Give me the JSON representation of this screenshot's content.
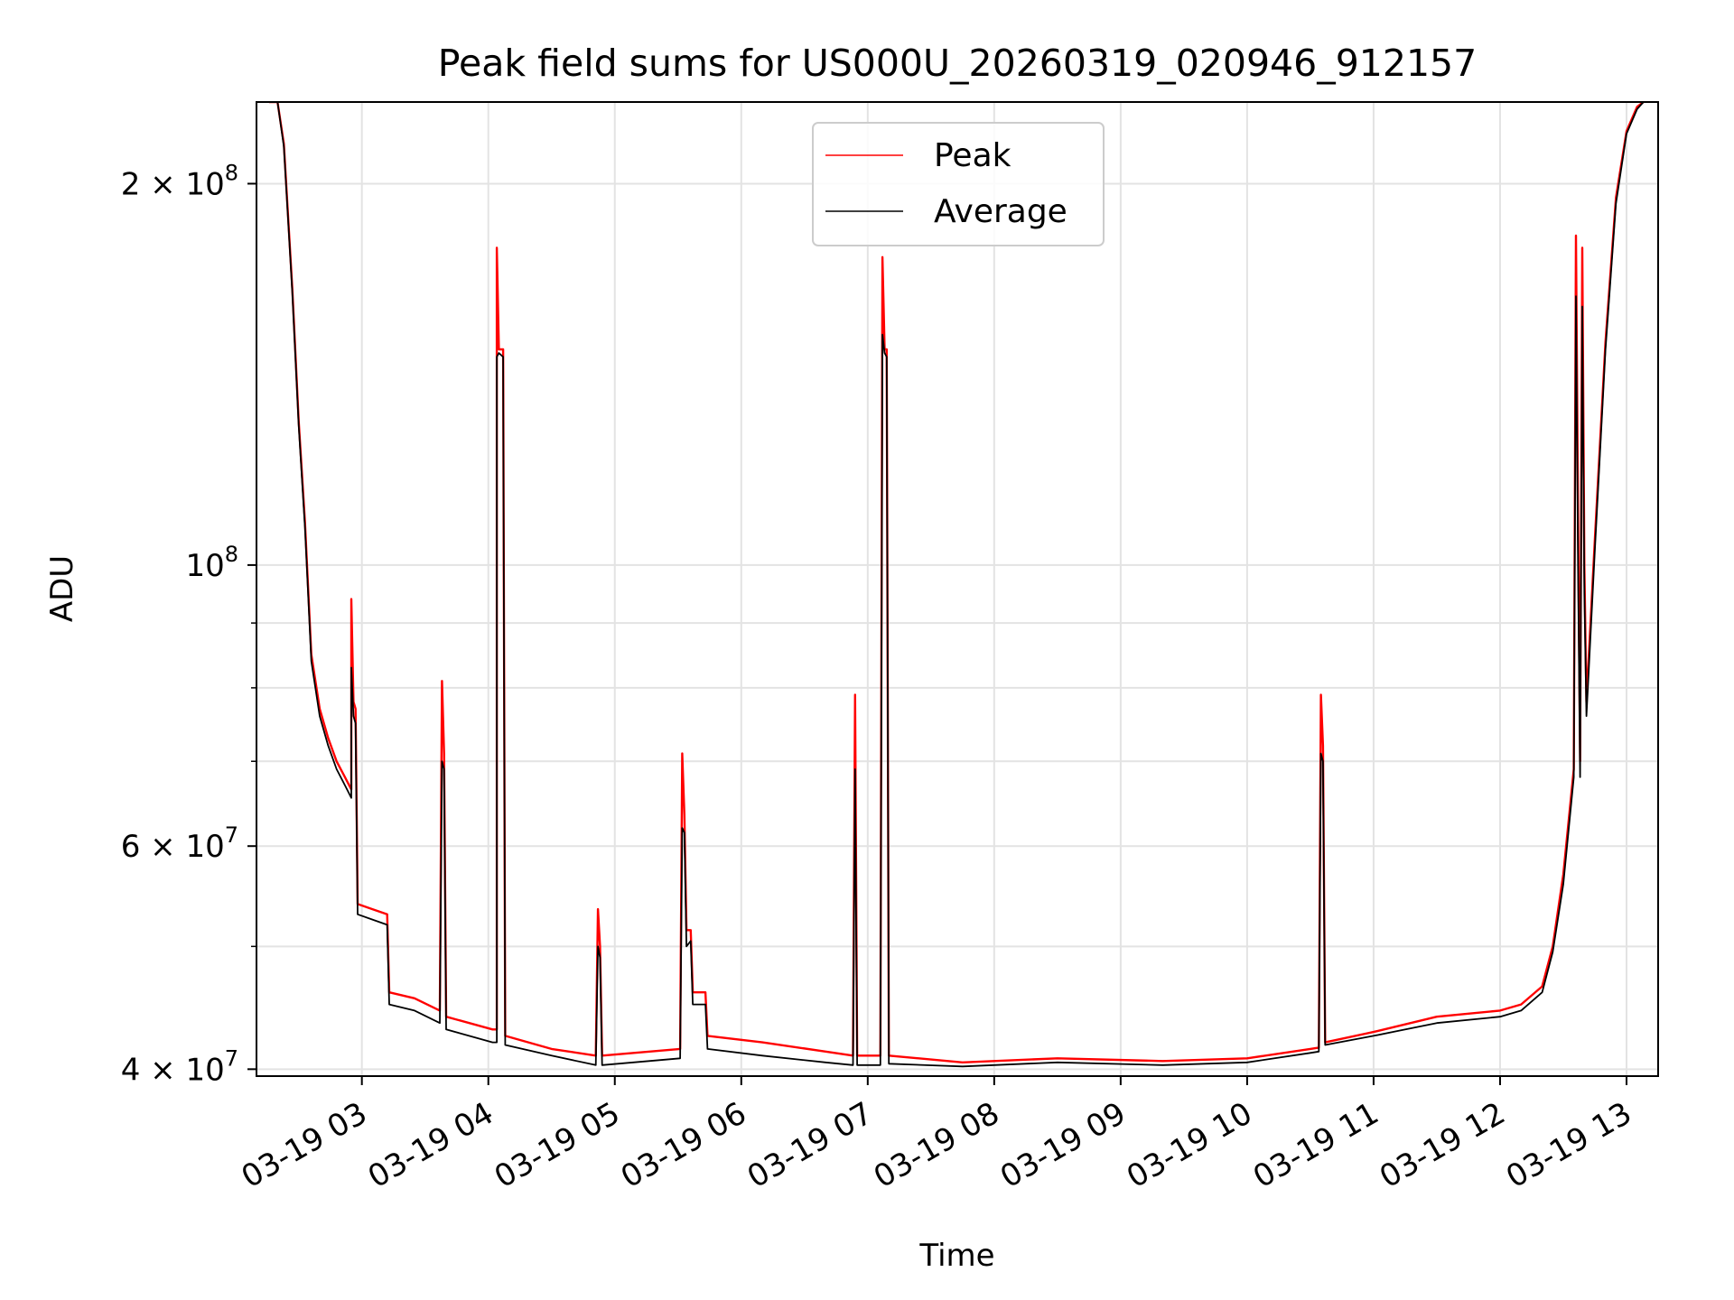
{
  "chart_data": {
    "type": "line",
    "title": "Peak field sums for US000U_20260319_020946_912157",
    "xlabel": "Time",
    "ylabel": "ADU",
    "y_scale": "log",
    "grid": true,
    "legend_placement": "top-center",
    "xlim": [
      "2026-03-19 02:10",
      "2026-03-19 13:15"
    ],
    "ylim": [
      39500000,
      232000000
    ],
    "x_ticks": [
      {
        "value": "2026-03-19 03:00",
        "label": "03-19 03"
      },
      {
        "value": "2026-03-19 04:00",
        "label": "03-19 04"
      },
      {
        "value": "2026-03-19 05:00",
        "label": "03-19 05"
      },
      {
        "value": "2026-03-19 06:00",
        "label": "03-19 06"
      },
      {
        "value": "2026-03-19 07:00",
        "label": "03-19 07"
      },
      {
        "value": "2026-03-19 08:00",
        "label": "03-19 08"
      },
      {
        "value": "2026-03-19 09:00",
        "label": "03-19 09"
      },
      {
        "value": "2026-03-19 10:00",
        "label": "03-19 10"
      },
      {
        "value": "2026-03-19 11:00",
        "label": "03-19 11"
      },
      {
        "value": "2026-03-19 12:00",
        "label": "03-19 12"
      },
      {
        "value": "2026-03-19 13:00",
        "label": "03-19 13"
      }
    ],
    "y_ticks": [
      {
        "value": 40000000,
        "mantissa": "4",
        "times": "×",
        "base": "10",
        "exponent": "7"
      },
      {
        "value": 60000000,
        "mantissa": "6",
        "times": "×",
        "base": "10",
        "exponent": "7"
      },
      {
        "value": 100000000,
        "mantissa": "",
        "times": "",
        "base": "10",
        "exponent": "8"
      },
      {
        "value": 200000000,
        "mantissa": "2",
        "times": "×",
        "base": "10",
        "exponent": "8"
      }
    ],
    "y_minor_ticks": [
      50000000,
      70000000,
      80000000,
      90000000
    ],
    "series": [
      {
        "name": "Peak",
        "color": "#ff0000",
        "points": [
          [
            "2026-03-19 02:16",
            232000000
          ],
          [
            "2026-03-19 02:20",
            232000000
          ],
          [
            "2026-03-19 02:23",
            215000000
          ],
          [
            "2026-03-19 02:27",
            165000000
          ],
          [
            "2026-03-19 02:30",
            130000000
          ],
          [
            "2026-03-19 02:33",
            108000000
          ],
          [
            "2026-03-19 02:36",
            85000000
          ],
          [
            "2026-03-19 02:40",
            77000000
          ],
          [
            "2026-03-19 02:44",
            73000000
          ],
          [
            "2026-03-19 02:48",
            70000000
          ],
          [
            "2026-03-19 02:52",
            68000000
          ],
          [
            "2026-03-19 02:55",
            66500000
          ],
          [
            "2026-03-19 02:55",
            94000000
          ],
          [
            "2026-03-19 02:56",
            78000000
          ],
          [
            "2026-03-19 02:57",
            77000000
          ],
          [
            "2026-03-19 02:58",
            54000000
          ],
          [
            "2026-03-19 03:05",
            53500000
          ],
          [
            "2026-03-19 03:12",
            53000000
          ],
          [
            "2026-03-19 03:13",
            46000000
          ],
          [
            "2026-03-19 03:25",
            45500000
          ],
          [
            "2026-03-19 03:37",
            44500000
          ],
          [
            "2026-03-19 03:38",
            81000000
          ],
          [
            "2026-03-19 03:39",
            71000000
          ],
          [
            "2026-03-19 03:40",
            44000000
          ],
          [
            "2026-03-19 04:02",
            43000000
          ],
          [
            "2026-03-19 04:04",
            43000000
          ],
          [
            "2026-03-19 04:04",
            178000000
          ],
          [
            "2026-03-19 04:05",
            148000000
          ],
          [
            "2026-03-19 04:07",
            148000000
          ],
          [
            "2026-03-19 04:08",
            42500000
          ],
          [
            "2026-03-19 04:30",
            41500000
          ],
          [
            "2026-03-19 04:51",
            41000000
          ],
          [
            "2026-03-19 04:52",
            53500000
          ],
          [
            "2026-03-19 04:53",
            50000000
          ],
          [
            "2026-03-19 04:54",
            41000000
          ],
          [
            "2026-03-19 05:31",
            41500000
          ],
          [
            "2026-03-19 05:32",
            71000000
          ],
          [
            "2026-03-19 05:33",
            63500000
          ],
          [
            "2026-03-19 05:34",
            51500000
          ],
          [
            "2026-03-19 05:36",
            51500000
          ],
          [
            "2026-03-19 05:37",
            46000000
          ],
          [
            "2026-03-19 05:43",
            46000000
          ],
          [
            "2026-03-19 05:44",
            42500000
          ],
          [
            "2026-03-19 06:10",
            42000000
          ],
          [
            "2026-03-19 06:40",
            41300000
          ],
          [
            "2026-03-19 06:53",
            41000000
          ],
          [
            "2026-03-19 06:54",
            79000000
          ],
          [
            "2026-03-19 06:55",
            41000000
          ],
          [
            "2026-03-19 07:06",
            41000000
          ],
          [
            "2026-03-19 07:07",
            175000000
          ],
          [
            "2026-03-19 07:08",
            148000000
          ],
          [
            "2026-03-19 07:09",
            148000000
          ],
          [
            "2026-03-19 07:10",
            41000000
          ],
          [
            "2026-03-19 07:45",
            40500000
          ],
          [
            "2026-03-19 08:30",
            40800000
          ],
          [
            "2026-03-19 09:20",
            40600000
          ],
          [
            "2026-03-19 10:00",
            40800000
          ],
          [
            "2026-03-19 10:30",
            41500000
          ],
          [
            "2026-03-19 10:34",
            41600000
          ],
          [
            "2026-03-19 10:35",
            79000000
          ],
          [
            "2026-03-19 10:36",
            72000000
          ],
          [
            "2026-03-19 10:37",
            42000000
          ],
          [
            "2026-03-19 11:00",
            42800000
          ],
          [
            "2026-03-19 11:30",
            44000000
          ],
          [
            "2026-03-19 12:00",
            44500000
          ],
          [
            "2026-03-19 12:10",
            45000000
          ],
          [
            "2026-03-19 12:20",
            46500000
          ],
          [
            "2026-03-19 12:25",
            50000000
          ],
          [
            "2026-03-19 12:30",
            57000000
          ],
          [
            "2026-03-19 12:35",
            69000000
          ],
          [
            "2026-03-19 12:36",
            182000000
          ],
          [
            "2026-03-19 12:37",
            110000000
          ],
          [
            "2026-03-19 12:38",
            70000000
          ],
          [
            "2026-03-19 12:39",
            178000000
          ],
          [
            "2026-03-19 12:40",
            100000000
          ],
          [
            "2026-03-19 12:41",
            78000000
          ],
          [
            "2026-03-19 12:45",
            105000000
          ],
          [
            "2026-03-19 12:50",
            150000000
          ],
          [
            "2026-03-19 12:55",
            195000000
          ],
          [
            "2026-03-19 13:00",
            220000000
          ],
          [
            "2026-03-19 13:05",
            230000000
          ],
          [
            "2026-03-19 13:08",
            232000000
          ]
        ]
      },
      {
        "name": "Average",
        "color": "#000000",
        "points": [
          [
            "2026-03-19 02:16",
            232000000
          ],
          [
            "2026-03-19 02:20",
            232000000
          ],
          [
            "2026-03-19 02:23",
            214000000
          ],
          [
            "2026-03-19 02:27",
            164000000
          ],
          [
            "2026-03-19 02:30",
            129000000
          ],
          [
            "2026-03-19 02:33",
            107000000
          ],
          [
            "2026-03-19 02:36",
            84000000
          ],
          [
            "2026-03-19 02:40",
            76000000
          ],
          [
            "2026-03-19 02:44",
            72000000
          ],
          [
            "2026-03-19 02:48",
            69000000
          ],
          [
            "2026-03-19 02:52",
            67000000
          ],
          [
            "2026-03-19 02:55",
            65500000
          ],
          [
            "2026-03-19 02:55",
            83000000
          ],
          [
            "2026-03-19 02:56",
            76000000
          ],
          [
            "2026-03-19 02:57",
            75000000
          ],
          [
            "2026-03-19 02:58",
            53000000
          ],
          [
            "2026-03-19 03:05",
            52500000
          ],
          [
            "2026-03-19 03:12",
            52000000
          ],
          [
            "2026-03-19 03:13",
            45000000
          ],
          [
            "2026-03-19 03:25",
            44500000
          ],
          [
            "2026-03-19 03:37",
            43500000
          ],
          [
            "2026-03-19 03:38",
            70000000
          ],
          [
            "2026-03-19 03:39",
            69000000
          ],
          [
            "2026-03-19 03:40",
            43000000
          ],
          [
            "2026-03-19 04:02",
            42000000
          ],
          [
            "2026-03-19 04:04",
            42000000
          ],
          [
            "2026-03-19 04:04",
            146000000
          ],
          [
            "2026-03-19 04:05",
            147000000
          ],
          [
            "2026-03-19 04:07",
            146000000
          ],
          [
            "2026-03-19 04:08",
            41800000
          ],
          [
            "2026-03-19 04:30",
            41000000
          ],
          [
            "2026-03-19 04:51",
            40300000
          ],
          [
            "2026-03-19 04:52",
            50000000
          ],
          [
            "2026-03-19 04:53",
            49000000
          ],
          [
            "2026-03-19 04:54",
            40300000
          ],
          [
            "2026-03-19 05:31",
            40800000
          ],
          [
            "2026-03-19 05:32",
            62000000
          ],
          [
            "2026-03-19 05:33",
            61500000
          ],
          [
            "2026-03-19 05:34",
            50000000
          ],
          [
            "2026-03-19 05:36",
            50500000
          ],
          [
            "2026-03-19 05:37",
            45000000
          ],
          [
            "2026-03-19 05:43",
            45000000
          ],
          [
            "2026-03-19 05:44",
            41500000
          ],
          [
            "2026-03-19 06:10",
            41000000
          ],
          [
            "2026-03-19 06:40",
            40500000
          ],
          [
            "2026-03-19 06:53",
            40300000
          ],
          [
            "2026-03-19 06:54",
            69000000
          ],
          [
            "2026-03-19 06:55",
            40300000
          ],
          [
            "2026-03-19 07:06",
            40300000
          ],
          [
            "2026-03-19 07:07",
            152000000
          ],
          [
            "2026-03-19 07:08",
            147000000
          ],
          [
            "2026-03-19 07:09",
            146000000
          ],
          [
            "2026-03-19 07:10",
            40400000
          ],
          [
            "2026-03-19 07:45",
            40200000
          ],
          [
            "2026-03-19 08:30",
            40500000
          ],
          [
            "2026-03-19 09:20",
            40300000
          ],
          [
            "2026-03-19 10:00",
            40500000
          ],
          [
            "2026-03-19 10:30",
            41200000
          ],
          [
            "2026-03-19 10:34",
            41300000
          ],
          [
            "2026-03-19 10:35",
            71000000
          ],
          [
            "2026-03-19 10:36",
            70000000
          ],
          [
            "2026-03-19 10:37",
            41800000
          ],
          [
            "2026-03-19 11:00",
            42500000
          ],
          [
            "2026-03-19 11:30",
            43500000
          ],
          [
            "2026-03-19 12:00",
            44000000
          ],
          [
            "2026-03-19 12:10",
            44500000
          ],
          [
            "2026-03-19 12:20",
            46000000
          ],
          [
            "2026-03-19 12:25",
            49500000
          ],
          [
            "2026-03-19 12:30",
            56000000
          ],
          [
            "2026-03-19 12:35",
            68000000
          ],
          [
            "2026-03-19 12:36",
            163000000
          ],
          [
            "2026-03-19 12:37",
            100000000
          ],
          [
            "2026-03-19 12:38",
            68000000
          ],
          [
            "2026-03-19 12:39",
            160000000
          ],
          [
            "2026-03-19 12:40",
            95000000
          ],
          [
            "2026-03-19 12:41",
            76000000
          ],
          [
            "2026-03-19 12:45",
            103000000
          ],
          [
            "2026-03-19 12:50",
            148000000
          ],
          [
            "2026-03-19 12:55",
            193000000
          ],
          [
            "2026-03-19 13:00",
            219000000
          ],
          [
            "2026-03-19 13:05",
            229000000
          ],
          [
            "2026-03-19 13:08",
            232000000
          ]
        ]
      }
    ]
  }
}
